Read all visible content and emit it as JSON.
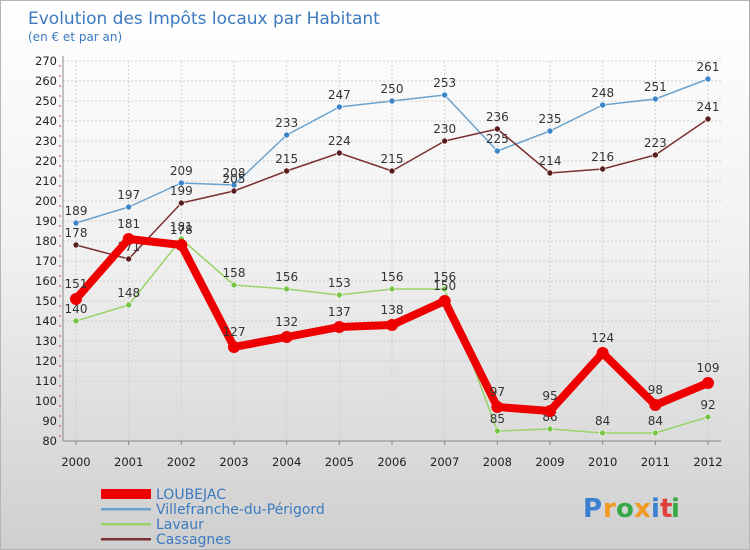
{
  "chart_data": {
    "type": "line",
    "title": "Evolution des Impôts locaux par Habitant",
    "subtitle": "(en € et par an)",
    "xlabel": "",
    "ylabel": "",
    "ylim": [
      80,
      270
    ],
    "ytick_step": 10,
    "grid": true,
    "legend_position": "bottom-left",
    "categories": [
      "2000",
      "2001",
      "2002",
      "2003",
      "2004",
      "2005",
      "2006",
      "2007",
      "2008",
      "2009",
      "2010",
      "2011",
      "2012"
    ],
    "series": [
      {
        "name": "Villefranche-du-Périgord",
        "color": "#6aa3cf",
        "marker_color": "#3a86c8",
        "values": [
          189,
          197,
          209,
          208,
          233,
          247,
          250,
          253,
          225,
          235,
          248,
          251,
          261
        ]
      },
      {
        "name": "Cassagnes",
        "color": "#7a3030",
        "marker_color": "#5a1d1d",
        "values": [
          178,
          171,
          199,
          205,
          215,
          224,
          215,
          230,
          236,
          214,
          216,
          223,
          241
        ]
      },
      {
        "name": "Lavaur",
        "color": "#9ad36a",
        "marker_color": "#79c446",
        "values": [
          140,
          148,
          181,
          158,
          156,
          153,
          156,
          156,
          85,
          86,
          84,
          84,
          92
        ]
      },
      {
        "name": "LOUBEJAC",
        "color": "#ee0000",
        "marker_color": "#ee0000",
        "values": [
          151,
          181,
          178,
          127,
          132,
          137,
          138,
          150,
          97,
          95,
          124,
          98,
          109
        ]
      }
    ],
    "legend_order": [
      "LOUBEJAC",
      "Villefranche-du-Périgord",
      "Lavaur",
      "Cassagnes"
    ]
  },
  "logo": {
    "letters": [
      "P",
      "r",
      "o",
      "x",
      "i",
      "t",
      "i"
    ],
    "colors": [
      "#3a7fd0",
      "#f29a1f",
      "#36a845",
      "#f29a1f",
      "#3a7fd0",
      "#e0403a",
      "#36a845"
    ]
  }
}
